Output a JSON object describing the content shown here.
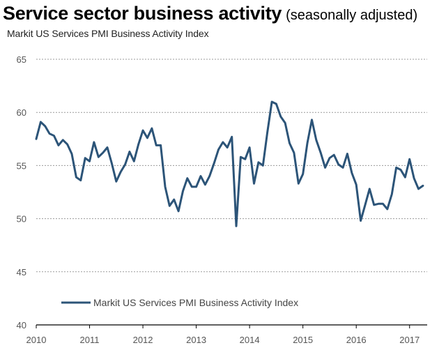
{
  "header": {
    "title": "Service sector business activity",
    "title_note": "(seasonally adjusted)"
  },
  "chart_data": {
    "type": "line",
    "title": "Service sector business activity",
    "subtitle": "Markit US Services PMI Business Activity Index",
    "xlabel": "",
    "ylabel": "",
    "ylim": [
      40,
      65
    ],
    "yticks": [
      40,
      45,
      50,
      55,
      60,
      65
    ],
    "xticks": [
      "2010",
      "2011",
      "2012",
      "2013",
      "2014",
      "2015",
      "2016",
      "2017"
    ],
    "xlim": [
      2010.0,
      2017.33
    ],
    "grid": "horizontal dashed",
    "legend": "bottom-left",
    "series": [
      {
        "name": "Markit US Services PMI Business Activity Index",
        "color": "#2c5478",
        "x": [
          2010.0,
          2010.083,
          2010.167,
          2010.25,
          2010.333,
          2010.417,
          2010.5,
          2010.583,
          2010.667,
          2010.75,
          2010.833,
          2010.917,
          2011.0,
          2011.083,
          2011.167,
          2011.25,
          2011.333,
          2011.417,
          2011.5,
          2011.583,
          2011.667,
          2011.75,
          2011.833,
          2011.917,
          2012.0,
          2012.083,
          2012.167,
          2012.25,
          2012.333,
          2012.417,
          2012.5,
          2012.583,
          2012.667,
          2012.75,
          2012.833,
          2012.917,
          2013.0,
          2013.083,
          2013.167,
          2013.25,
          2013.333,
          2013.417,
          2013.5,
          2013.583,
          2013.667,
          2013.75,
          2013.833,
          2013.917,
          2014.0,
          2014.083,
          2014.167,
          2014.25,
          2014.333,
          2014.417,
          2014.5,
          2014.583,
          2014.667,
          2014.75,
          2014.833,
          2014.917,
          2015.0,
          2015.083,
          2015.167,
          2015.25,
          2015.333,
          2015.417,
          2015.5,
          2015.583,
          2015.667,
          2015.75,
          2015.833,
          2015.917,
          2016.0,
          2016.083,
          2016.167,
          2016.25,
          2016.333,
          2016.417,
          2016.5,
          2016.583,
          2016.667,
          2016.75,
          2016.833,
          2016.917,
          2017.0,
          2017.083,
          2017.167,
          2017.25
        ],
        "values": [
          57.5,
          59.1,
          58.7,
          58.0,
          57.8,
          56.9,
          57.4,
          57.0,
          56.1,
          53.9,
          53.6,
          55.7,
          55.4,
          57.2,
          55.8,
          56.2,
          56.7,
          55.2,
          53.5,
          54.4,
          55.1,
          56.3,
          55.4,
          57.0,
          58.3,
          57.6,
          58.5,
          56.9,
          56.9,
          53.0,
          51.2,
          51.8,
          50.7,
          52.6,
          53.8,
          53.0,
          53.0,
          54.0,
          53.2,
          54.0,
          55.2,
          56.5,
          57.2,
          56.7,
          57.7,
          49.3,
          55.8,
          55.6,
          56.7,
          53.3,
          55.3,
          55.0,
          58.1,
          61.0,
          60.8,
          59.6,
          59.0,
          57.1,
          56.2,
          53.3,
          54.2,
          57.1,
          59.3,
          57.4,
          56.2,
          54.8,
          55.7,
          56.0,
          55.1,
          54.8,
          56.1,
          54.3,
          53.2,
          49.8,
          51.3,
          52.8,
          51.3,
          51.4,
          51.4,
          50.9,
          52.3,
          54.8,
          54.6,
          53.9,
          55.6,
          53.8,
          52.8,
          53.1
        ]
      }
    ]
  }
}
